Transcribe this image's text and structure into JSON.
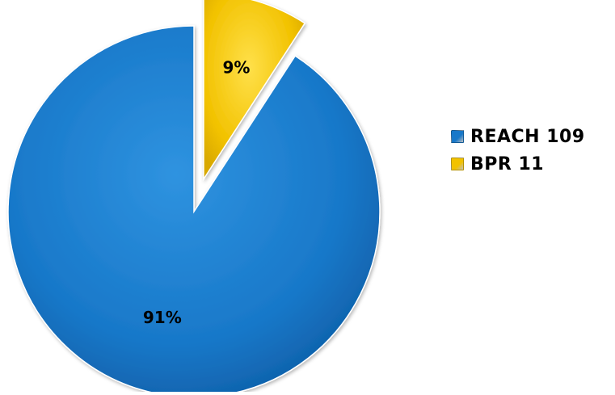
{
  "chart_data": {
    "type": "pie",
    "slices": [
      {
        "label": "REACH 109",
        "value": 109,
        "percent_label": "91%",
        "color": "#1878C9",
        "exploded": false
      },
      {
        "label": "BPR 11",
        "value": 11,
        "percent_label": "9%",
        "color": "#F2C200",
        "exploded": true
      }
    ],
    "legend_position": "right",
    "title": ""
  }
}
